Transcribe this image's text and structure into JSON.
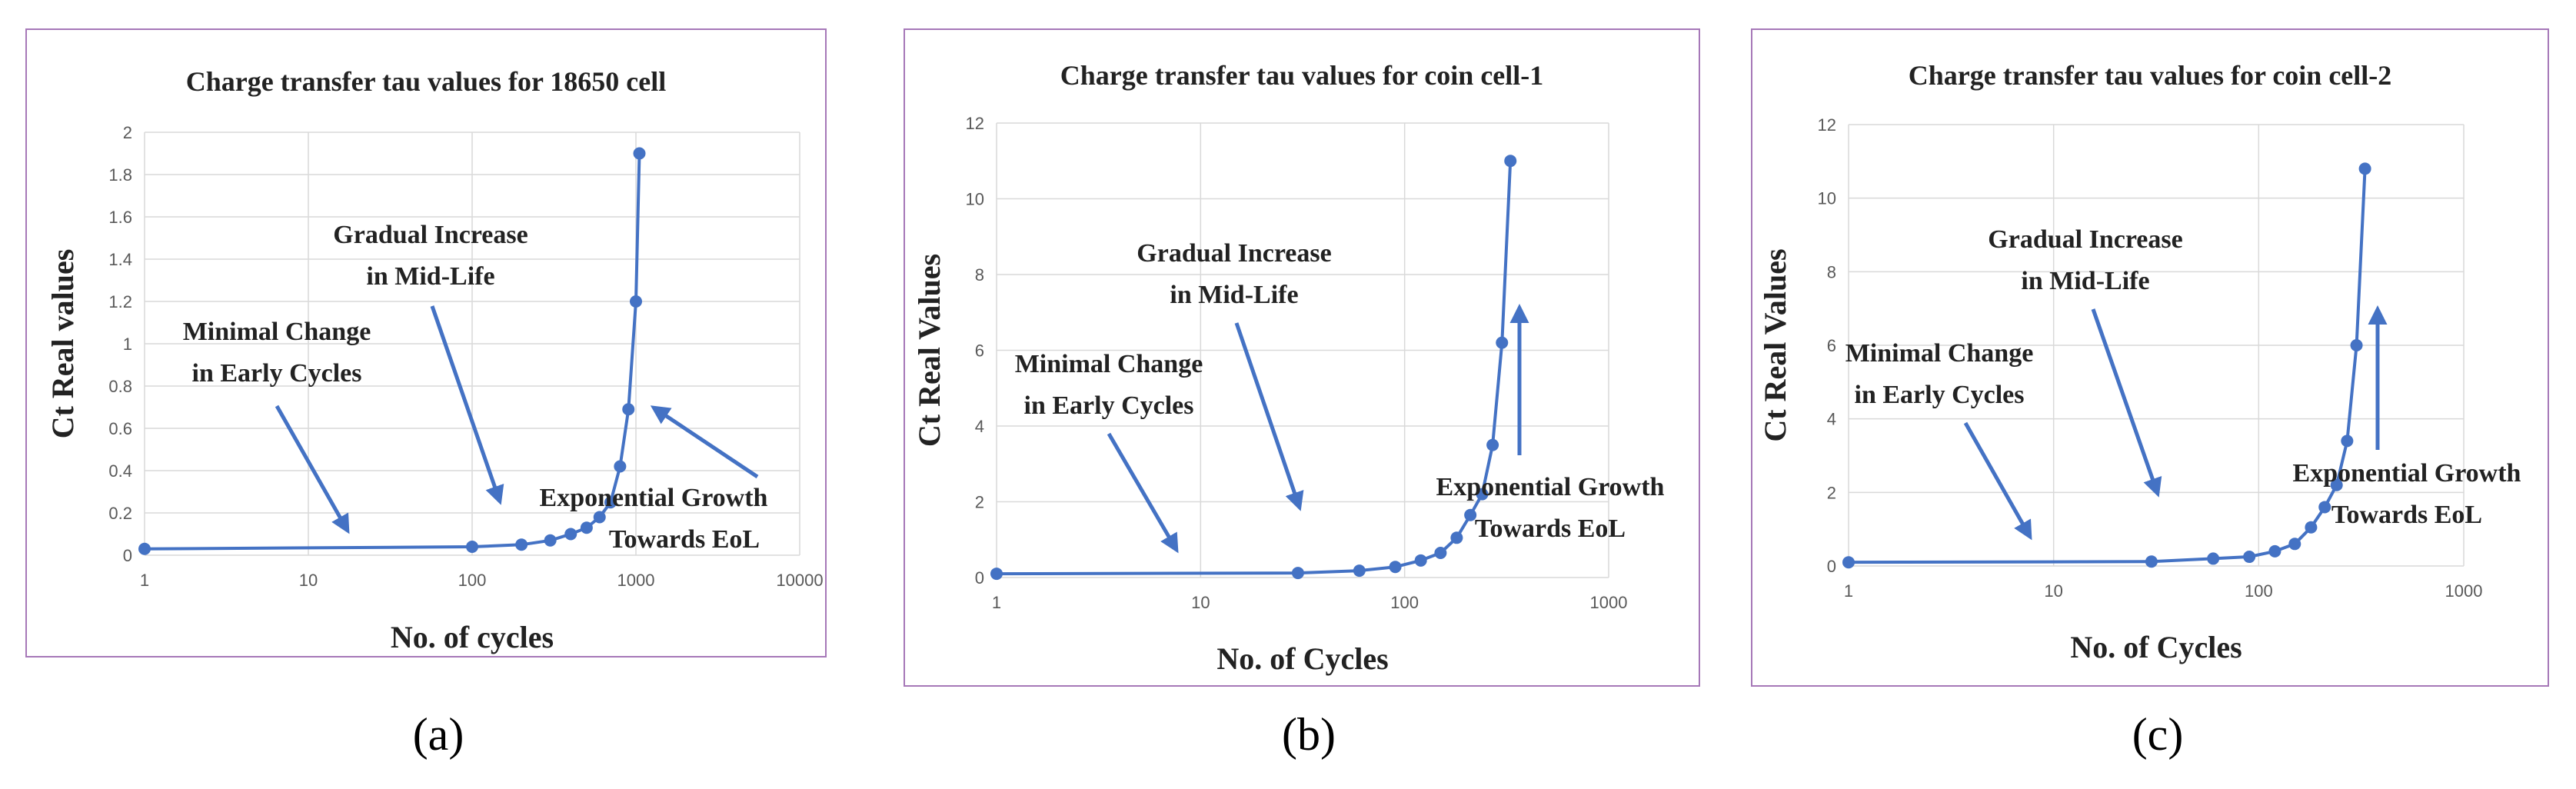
{
  "colors": {
    "series": "#4472C4",
    "frame": "#A678B8",
    "grid": "#D9D9D9",
    "text": "#222222",
    "tick": "#595959"
  },
  "chart_data": [
    {
      "id": "a",
      "panel_label": "(a)",
      "type": "line",
      "title": "Charge transfer tau values for 18650 cell",
      "xlabel": "No. of cycles",
      "ylabel": "Ct Real values",
      "xscale": "log",
      "xlim": [
        1,
        10000
      ],
      "xticks": [
        1,
        10,
        100,
        1000,
        10000
      ],
      "xtick_labels": [
        "1",
        "10",
        "100",
        "1000",
        "10000"
      ],
      "ylim": [
        0,
        2
      ],
      "yticks": [
        0,
        0.2,
        0.4,
        0.6,
        0.8,
        1,
        1.2,
        1.4,
        1.6,
        1.8,
        2
      ],
      "ytick_labels": [
        "0",
        "0.2",
        "0.4",
        "0.6",
        "0.8",
        "1",
        "1.2",
        "1.4",
        "1.6",
        "1.8",
        "2"
      ],
      "grid": true,
      "series": [
        {
          "name": "Ct Real values",
          "x": [
            1,
            100,
            200,
            300,
            400,
            500,
            600,
            700,
            800,
            900,
            1000,
            1050
          ],
          "y": [
            0.03,
            0.04,
            0.05,
            0.07,
            0.1,
            0.13,
            0.18,
            0.25,
            0.42,
            0.69,
            1.2,
            1.9
          ]
        }
      ],
      "annotations": [
        {
          "lines": [
            "Minimal Change",
            "in Early Cycles"
          ],
          "anchor": "left-middle"
        },
        {
          "lines": [
            "Gradual Increase",
            "in Mid-Life"
          ],
          "anchor": "upper-middle"
        },
        {
          "lines": [
            "Exponential Growth",
            "Towards EoL"
          ],
          "anchor": "lower-right"
        }
      ]
    },
    {
      "id": "b",
      "panel_label": "(b)",
      "type": "line",
      "title": "Charge transfer tau values for coin cell-1",
      "xlabel": "No. of Cycles",
      "ylabel": "Ct Real Values",
      "xscale": "log",
      "xlim": [
        1,
        1000
      ],
      "xticks": [
        1,
        10,
        100,
        1000
      ],
      "xtick_labels": [
        "1",
        "10",
        "100",
        "1000"
      ],
      "ylim": [
        0,
        12
      ],
      "yticks": [
        0,
        2,
        4,
        6,
        8,
        10,
        12
      ],
      "ytick_labels": [
        "0",
        "2",
        "4",
        "6",
        "8",
        "10",
        "12"
      ],
      "grid": true,
      "series": [
        {
          "name": "Ct Real Values",
          "x": [
            1,
            30,
            60,
            90,
            120,
            150,
            180,
            210,
            240,
            270,
            300,
            330
          ],
          "y": [
            0.1,
            0.12,
            0.18,
            0.28,
            0.45,
            0.65,
            1.05,
            1.65,
            2.2,
            3.5,
            6.2,
            11.0
          ]
        }
      ],
      "annotations": [
        {
          "lines": [
            "Minimal Change",
            "in Early Cycles"
          ],
          "anchor": "left-middle"
        },
        {
          "lines": [
            "Gradual Increase",
            "in Mid-Life"
          ],
          "anchor": "upper-middle"
        },
        {
          "lines": [
            "Exponential Growth",
            "Towards EoL"
          ],
          "anchor": "lower-right"
        }
      ]
    },
    {
      "id": "c",
      "panel_label": "(c)",
      "type": "line",
      "title": "Charge transfer tau values for coin cell-2",
      "xlabel": "No. of Cycles",
      "ylabel": "Ct Real Values",
      "xscale": "log",
      "xlim": [
        1,
        1000
      ],
      "xticks": [
        1,
        10,
        100,
        1000
      ],
      "xtick_labels": [
        "1",
        "10",
        "100",
        "1000"
      ],
      "ylim": [
        0,
        12
      ],
      "yticks": [
        0,
        2,
        4,
        6,
        8,
        10,
        12
      ],
      "ytick_labels": [
        "0",
        "2",
        "4",
        "6",
        "8",
        "10",
        "12"
      ],
      "grid": true,
      "series": [
        {
          "name": "Ct Real Values",
          "x": [
            1,
            30,
            60,
            90,
            120,
            150,
            180,
            210,
            240,
            270,
            300,
            330
          ],
          "y": [
            0.1,
            0.12,
            0.2,
            0.25,
            0.4,
            0.6,
            1.05,
            1.6,
            2.2,
            3.4,
            6.0,
            10.8
          ]
        }
      ],
      "annotations": [
        {
          "lines": [
            "Minimal Change",
            "in Early Cycles"
          ],
          "anchor": "left-middle"
        },
        {
          "lines": [
            "Gradual Increase",
            "in Mid-Life"
          ],
          "anchor": "upper-middle"
        },
        {
          "lines": [
            "Exponential Growth",
            "Towards EoL"
          ],
          "anchor": "lower-right"
        }
      ]
    }
  ]
}
